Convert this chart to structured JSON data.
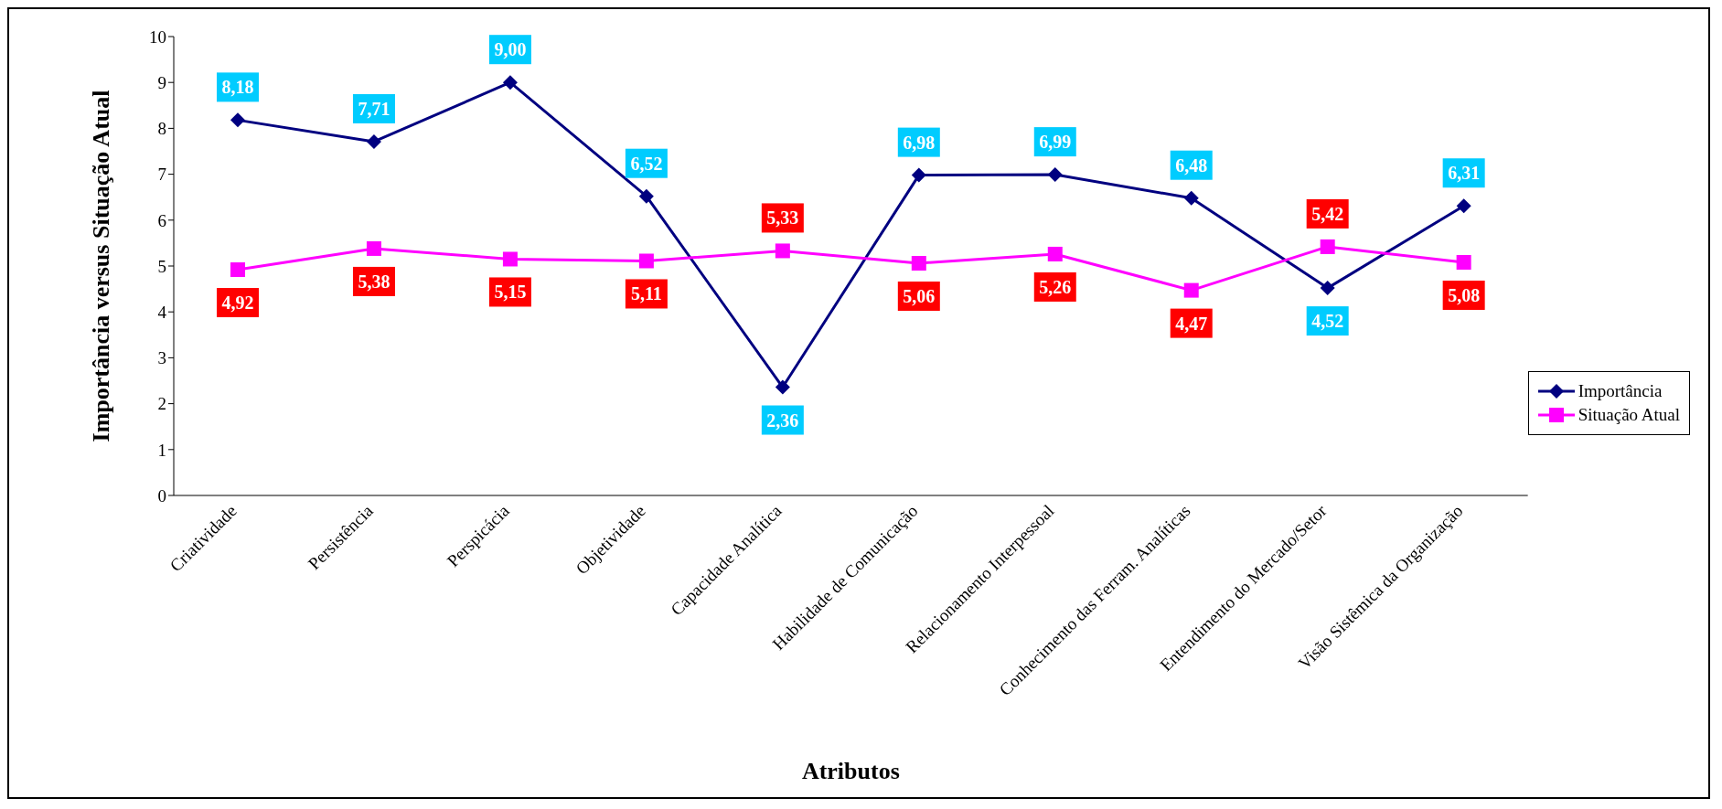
{
  "chart_data": {
    "type": "line",
    "xlabel": "Atributos",
    "ylabel": "Importância versus Situação Atual",
    "categories": [
      "Criatividade",
      "Persistência",
      "Perspicácia",
      "Objetividade",
      "Capacidade Analítica",
      "Habilidade de Comunicação",
      "Relacionamento Interpessoal",
      "Conhecimento das Ferram. Analíticas",
      "Entendimento do Mercado/Setor",
      "Visão Sistêmica da Organização"
    ],
    "series": [
      {
        "name": "Importância",
        "color": "#000080",
        "marker": "diamond",
        "values": [
          8.18,
          7.71,
          9.0,
          6.52,
          2.36,
          6.98,
          6.99,
          6.48,
          4.52,
          6.31
        ],
        "value_labels": [
          "8,18",
          "7,71",
          "9,00",
          "6,52",
          "2,36",
          "6,98",
          "6,99",
          "6,48",
          "4,52",
          "6,31"
        ]
      },
      {
        "name": "Situação Atual",
        "color": "#ff00ff",
        "marker": "square",
        "values": [
          4.92,
          5.38,
          5.15,
          5.11,
          5.33,
          5.06,
          5.26,
          4.47,
          5.42,
          5.08
        ],
        "value_labels": [
          "4,92",
          "5,38",
          "5,15",
          "5,11",
          "5,33",
          "5,06",
          "5,26",
          "4,47",
          "5,42",
          "5,08"
        ]
      }
    ],
    "ylim": [
      0,
      10
    ],
    "yticks": [
      0,
      1,
      2,
      3,
      4,
      5,
      6,
      7,
      8,
      9,
      10
    ],
    "grid": false,
    "legend": "right",
    "line_style": "solid"
  }
}
